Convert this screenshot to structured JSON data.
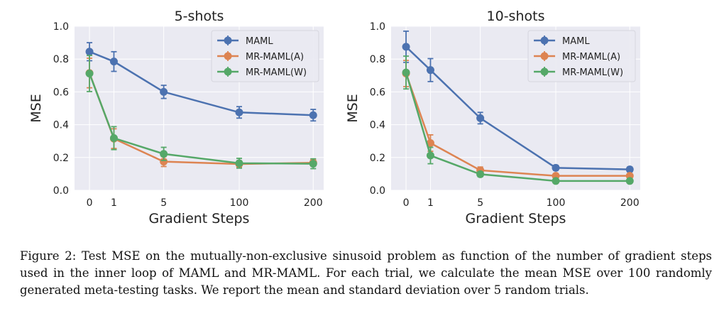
{
  "chart_data": [
    {
      "type": "line",
      "title": "5-shots",
      "xlabel": "Gradient Steps",
      "ylabel": "MSE",
      "categories": [
        "0",
        "1",
        "5",
        "100",
        "200"
      ],
      "ylim": [
        0,
        1.0
      ],
      "yticks": [
        "0.0",
        "0.2",
        "0.4",
        "0.6",
        "0.8",
        "1.0"
      ],
      "grid": true,
      "legend_position": "top-right",
      "series": [
        {
          "name": "MAML",
          "color": "#4c72b0",
          "values": [
            0.845,
            0.785,
            0.6,
            0.475,
            0.458
          ],
          "errors": [
            0.055,
            0.06,
            0.04,
            0.035,
            0.035
          ]
        },
        {
          "name": "MR-MAML(A)",
          "color": "#dd8452",
          "values": [
            0.715,
            0.315,
            0.175,
            0.16,
            0.168
          ],
          "errors": [
            0.09,
            0.06,
            0.03,
            0.02,
            0.02
          ]
        },
        {
          "name": "MR-MAML(W)",
          "color": "#55a868",
          "values": [
            0.712,
            0.318,
            0.222,
            0.165,
            0.162
          ],
          "errors": [
            0.11,
            0.07,
            0.04,
            0.03,
            0.03
          ]
        }
      ]
    },
    {
      "type": "line",
      "title": "10-shots",
      "xlabel": "Gradient Steps",
      "ylabel": "MSE",
      "categories": [
        "0",
        "1",
        "5",
        "100",
        "200"
      ],
      "ylim": [
        0,
        1.0
      ],
      "yticks": [
        "0.0",
        "0.2",
        "0.4",
        "0.6",
        "0.8",
        "1.0"
      ],
      "grid": true,
      "legend_position": "top-right",
      "series": [
        {
          "name": "MAML",
          "color": "#4c72b0",
          "values": [
            0.875,
            0.733,
            0.44,
            0.137,
            0.127
          ],
          "errors": [
            0.095,
            0.07,
            0.035,
            0.015,
            0.015
          ]
        },
        {
          "name": "MR-MAML(A)",
          "color": "#dd8452",
          "values": [
            0.712,
            0.288,
            0.122,
            0.088,
            0.088
          ],
          "errors": [
            0.08,
            0.05,
            0.02,
            0.012,
            0.012
          ]
        },
        {
          "name": "MR-MAML(W)",
          "color": "#55a868",
          "values": [
            0.718,
            0.212,
            0.098,
            0.057,
            0.057
          ],
          "errors": [
            0.1,
            0.05,
            0.015,
            0.01,
            0.01
          ]
        }
      ]
    }
  ],
  "caption": "Figure 2: Test MSE on the mutually-non-exclusive sinusoid problem as function of the number of gradient steps used in the inner loop of MAML and MR-MAML. For each trial, we calculate the mean MSE over 100 randomly generated meta-testing tasks. We report the mean and standard deviation over 5 random trials."
}
